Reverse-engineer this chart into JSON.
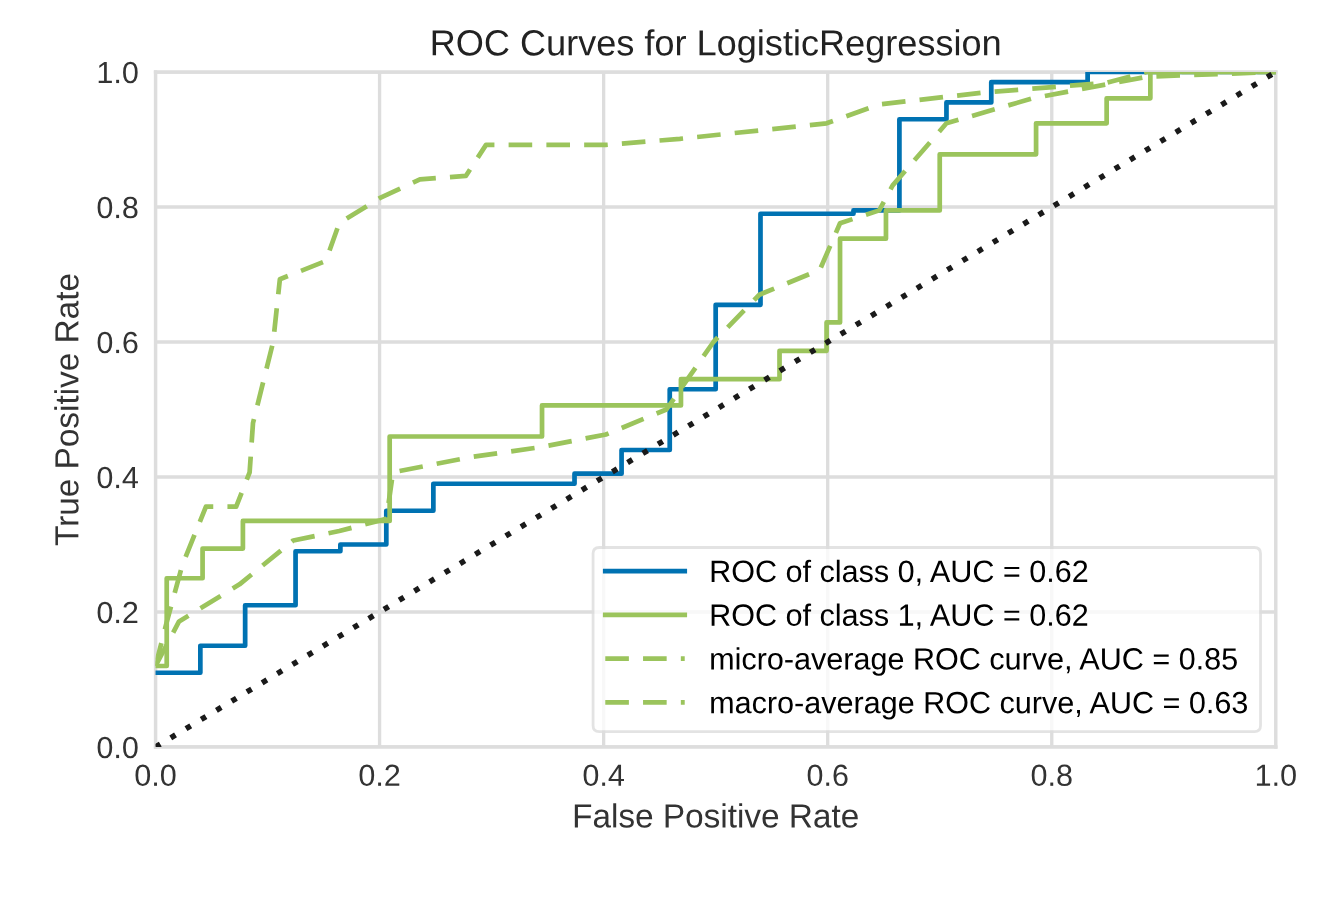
{
  "chart_data": {
    "type": "line",
    "title": "ROC Curves for LogisticRegression",
    "xlabel": "False Positive Rate",
    "ylabel": "True Positive Rate",
    "xlim": [
      0,
      1
    ],
    "ylim": [
      0,
      1
    ],
    "xticks": [
      {
        "value": 0,
        "label": "0.0"
      },
      0.2,
      0.4,
      0.6,
      0.8,
      {
        "value": 1,
        "label": "1.0"
      }
    ],
    "yticks": [
      {
        "value": 0,
        "label": "0.0"
      },
      0.2,
      0.4,
      0.6,
      0.8,
      {
        "value": 1,
        "label": "1.0"
      }
    ],
    "grid": true,
    "legend": "bottom right",
    "marker": "none",
    "series": [
      {
        "name": "ROC of class 0, AUC = 0.62",
        "color": "#0072b2",
        "line_style": "solid",
        "x": [
          0,
          0.04,
          0.04,
          0.08,
          0.08,
          0.125,
          0.125,
          0.165,
          0.165,
          0.206,
          0.206,
          0.248,
          0.248,
          0.374,
          0.374,
          0.416,
          0.416,
          0.459,
          0.459,
          0.5,
          0.5,
          0.54,
          0.54,
          0.623,
          0.623,
          0.664,
          0.664,
          0.706,
          0.706,
          0.746,
          0.746,
          0.832,
          0.832,
          1
        ],
        "values": [
          0.11,
          0.11,
          0.15,
          0.15,
          0.21,
          0.21,
          0.29,
          0.29,
          0.3,
          0.3,
          0.35,
          0.35,
          0.39,
          0.39,
          0.405,
          0.405,
          0.44,
          0.44,
          0.53,
          0.53,
          0.655,
          0.655,
          0.79,
          0.79,
          0.795,
          0.795,
          0.93,
          0.93,
          0.955,
          0.955,
          0.985,
          0.985,
          1.0,
          1.0
        ]
      },
      {
        "name": "ROC of class 1, AUC = 0.62",
        "color": "#9bc45c",
        "line_style": "solid",
        "x": [
          0,
          0.01,
          0.01,
          0.042,
          0.042,
          0.078,
          0.078,
          0.209,
          0.209,
          0.345,
          0.345,
          0.469,
          0.469,
          0.557,
          0.557,
          0.599,
          0.599,
          0.611,
          0.611,
          0.652,
          0.652,
          0.7,
          0.7,
          0.786,
          0.786,
          0.849,
          0.849,
          0.888,
          0.888,
          1
        ],
        "values": [
          0.12,
          0.12,
          0.25,
          0.25,
          0.294,
          0.294,
          0.335,
          0.335,
          0.46,
          0.46,
          0.506,
          0.506,
          0.545,
          0.545,
          0.587,
          0.587,
          0.629,
          0.629,
          0.753,
          0.753,
          0.795,
          0.795,
          0.878,
          0.878,
          0.924,
          0.924,
          0.961,
          0.961,
          1.0,
          1.0
        ]
      },
      {
        "name": "micro-average ROC curve, AUC = 0.85",
        "color": "#9bc45c",
        "line_style": "dashed",
        "x": [
          0,
          0.01,
          0.024,
          0.045,
          0.072,
          0.084,
          0.087,
          0.105,
          0.111,
          0.152,
          0.164,
          0.2,
          0.236,
          0.277,
          0.295,
          0.402,
          0.468,
          0.599,
          0.646,
          0.742,
          0.849,
          0.885,
          1
        ],
        "values": [
          0.12,
          0.185,
          0.27,
          0.356,
          0.356,
          0.407,
          0.48,
          0.6,
          0.693,
          0.72,
          0.776,
          0.813,
          0.841,
          0.846,
          0.892,
          0.892,
          0.901,
          0.924,
          0.952,
          0.97,
          0.984,
          1.0,
          1.0
        ]
      },
      {
        "name": "macro-average ROC curve, AUC = 0.63",
        "color": "#9bc45c",
        "line_style": "dashed",
        "x": [
          0,
          0.021,
          0.075,
          0.123,
          0.164,
          0.206,
          0.212,
          0.283,
          0.343,
          0.402,
          0.456,
          0.498,
          0.539,
          0.593,
          0.611,
          0.646,
          0.658,
          0.706,
          0.783,
          0.885,
          1
        ],
        "values": [
          0.12,
          0.186,
          0.241,
          0.306,
          0.32,
          0.338,
          0.407,
          0.43,
          0.444,
          0.463,
          0.5,
          0.6,
          0.67,
          0.707,
          0.776,
          0.795,
          0.832,
          0.924,
          0.961,
          0.993,
          1.0
        ]
      },
      {
        "color": "#1a1a1a",
        "line_style": "dotted",
        "x": [
          0,
          1
        ],
        "values": [
          0,
          1
        ]
      }
    ]
  }
}
